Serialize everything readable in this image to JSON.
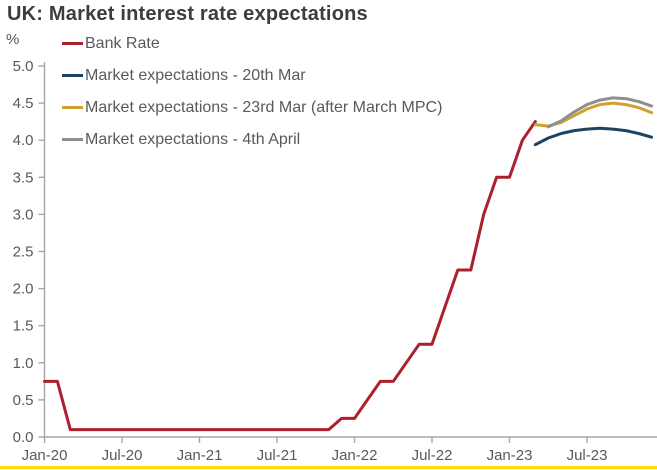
{
  "page": {
    "title": "UK: Market interest rate expectations",
    "unit_label": "%"
  },
  "colors": {
    "background": "#ffffff",
    "title_text": "#3d3d3d",
    "axis_line": "#a6a6a6",
    "tick_text": "#595959",
    "legend_text": "#595959",
    "bottom_accent": "#ffde00"
  },
  "chart_data": {
    "type": "line",
    "title": "UK: Market interest rate expectations",
    "ylabel": "%",
    "ylim": [
      0.0,
      5.0
    ],
    "ytick_step": 0.5,
    "ytick_labels": [
      "0.0",
      "0.5",
      "1.0",
      "1.5",
      "2.0",
      "2.5",
      "3.0",
      "3.5",
      "4.0",
      "4.5",
      "5.0"
    ],
    "grid": false,
    "legend_position": "top-left",
    "x_axis": {
      "tick_labels": [
        "Jan-20",
        "Jul-20",
        "Jan-21",
        "Jul-21",
        "Jan-22",
        "Jul-22",
        "Jan-23",
        "Jul-23"
      ],
      "months_per_tick": 6,
      "start_month": "Jan-20",
      "end_month": "Dec-23"
    },
    "series": [
      {
        "name": "Bank Rate",
        "color": "#ae1f2d",
        "start_month": "Jan-20",
        "start_index": 0,
        "monthly_values": [
          0.75,
          0.75,
          0.1,
          0.1,
          0.1,
          0.1,
          0.1,
          0.1,
          0.1,
          0.1,
          0.1,
          0.1,
          0.1,
          0.1,
          0.1,
          0.1,
          0.1,
          0.1,
          0.1,
          0.1,
          0.1,
          0.1,
          0.1,
          0.25,
          0.25,
          0.5,
          0.75,
          0.75,
          1.0,
          1.25,
          1.25,
          1.75,
          2.25,
          2.25,
          3.0,
          3.5,
          3.5,
          4.0,
          4.25
        ]
      },
      {
        "name": "Market expectations - 20th Mar",
        "color": "#1c4364",
        "start_month": "Mar-23",
        "start_index": 38,
        "monthly_values": [
          3.94,
          4.03,
          4.09,
          4.13,
          4.15,
          4.16,
          4.15,
          4.13,
          4.09,
          4.04
        ]
      },
      {
        "name": "Market expectations - 23rd Mar (after March MPC)",
        "color": "#cfa32b",
        "start_month": "Mar-23",
        "start_index": 38,
        "monthly_values": [
          4.21,
          4.19,
          4.24,
          4.33,
          4.42,
          4.48,
          4.5,
          4.48,
          4.44,
          4.37
        ]
      },
      {
        "name": "Market expectations - 4th April",
        "color": "#8e9090",
        "start_month": "Apr-23",
        "start_index": 39,
        "monthly_values": [
          4.18,
          4.26,
          4.38,
          4.48,
          4.54,
          4.57,
          4.56,
          4.52,
          4.46
        ]
      }
    ]
  }
}
